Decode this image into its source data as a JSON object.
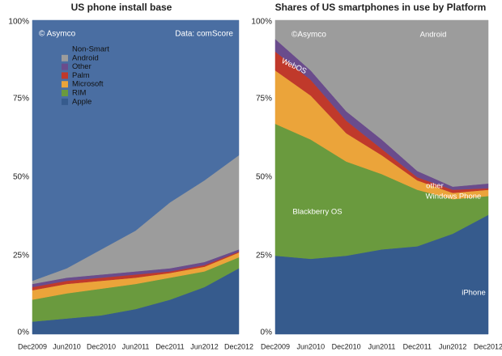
{
  "chart_data": [
    {
      "type": "stacked-area",
      "title": "US phone install base",
      "annotations": [
        "© Asymco",
        "Data: comScore"
      ],
      "categories": [
        "Dec2009",
        "Jun2010",
        "Dec2010",
        "Jun2011",
        "Dec2011",
        "Jun2012",
        "Dec2012"
      ],
      "series": [
        {
          "name": "Apple",
          "color": "#365b8d",
          "values": [
            4,
            5,
            6,
            8,
            11,
            15,
            21
          ]
        },
        {
          "name": "RIM",
          "color": "#6a9a3e",
          "values": [
            7,
            8,
            8.5,
            8,
            7,
            5,
            3.5
          ]
        },
        {
          "name": "Microsoft",
          "color": "#eba43a",
          "values": [
            3,
            3,
            2.5,
            2,
            1.5,
            1.5,
            1.5
          ]
        },
        {
          "name": "Palm",
          "color": "#c0392b",
          "values": [
            1,
            1,
            1,
            1,
            0.5,
            0.5,
            0.3
          ]
        },
        {
          "name": "Other",
          "color": "#6a4c8c",
          "values": [
            1,
            1,
            1,
            1,
            1,
            1,
            0.7
          ]
        },
        {
          "name": "Android",
          "color": "#9c9c9c",
          "values": [
            1,
            3,
            8,
            13,
            21,
            26,
            30
          ]
        },
        {
          "name": "Non-Smart",
          "color": "#4a6ea2",
          "values": [
            83,
            79,
            73,
            67,
            58,
            51,
            43
          ]
        }
      ],
      "ylim": [
        0,
        100
      ],
      "yticks": [
        {
          "value": 0,
          "label": "0%"
        },
        {
          "value": 25,
          "label": "25%"
        },
        {
          "value": 50,
          "label": "50%"
        },
        {
          "value": 75,
          "label": "75%"
        },
        {
          "value": 100,
          "label": "100%"
        }
      ],
      "legend": "top-left"
    },
    {
      "type": "stacked-area",
      "title": "Shares of US smartphones in use by Platform",
      "annotations": [
        "©Asymco"
      ],
      "categories": [
        "Dec2009",
        "Jun2010",
        "Dec2010",
        "Jun2011",
        "Dec2011",
        "Jun2012",
        "Dec2012"
      ],
      "series": [
        {
          "name": "iPhone",
          "color": "#365b8d",
          "values": [
            25,
            24,
            25,
            27,
            28,
            32,
            38
          ]
        },
        {
          "name": "Blackberry OS",
          "color": "#6a9a3e",
          "values": [
            42,
            38,
            30,
            24,
            18,
            11,
            6
          ]
        },
        {
          "name": "Windows Phone",
          "color": "#eba43a",
          "values": [
            17,
            14,
            9,
            6,
            3,
            2,
            2
          ]
        },
        {
          "name": "WebOS",
          "color": "#c0392b",
          "values": [
            6,
            5,
            4,
            2,
            1,
            1,
            0.5
          ]
        },
        {
          "name": "other",
          "color": "#6a4c8c",
          "values": [
            4,
            3,
            3,
            3,
            2,
            1,
            1.5
          ]
        },
        {
          "name": "Android",
          "color": "#9c9c9c",
          "values": [
            6,
            16,
            29,
            38,
            48,
            53,
            52
          ]
        }
      ],
      "ylim": [
        0,
        100
      ],
      "yticks": [
        {
          "value": 0,
          "label": "0%"
        },
        {
          "value": 25,
          "label": "25%"
        },
        {
          "value": 50,
          "label": "50%"
        },
        {
          "value": 75,
          "label": "75%"
        },
        {
          "value": 100,
          "label": "100%"
        }
      ],
      "legend": "direct-labels"
    }
  ]
}
